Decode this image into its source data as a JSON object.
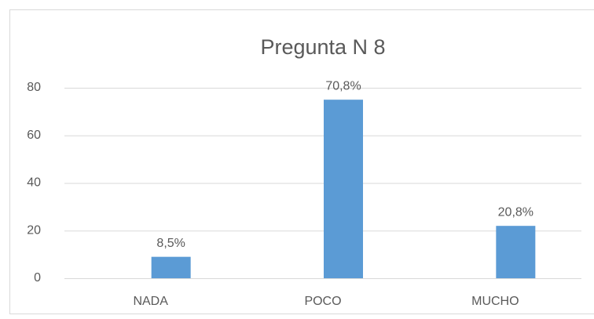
{
  "chart_data": {
    "type": "bar",
    "title": "Pregunta N 8",
    "categories": [
      "NADA",
      "POCO",
      "MUCHO"
    ],
    "values": [
      9,
      75,
      22
    ],
    "value_labels": [
      "8,5%",
      "70,8%",
      "20,8%"
    ],
    "color": "#5b9bd5",
    "ylim": [
      0,
      80
    ],
    "yticks": [
      0,
      20,
      40,
      60,
      80
    ],
    "grid": true
  }
}
